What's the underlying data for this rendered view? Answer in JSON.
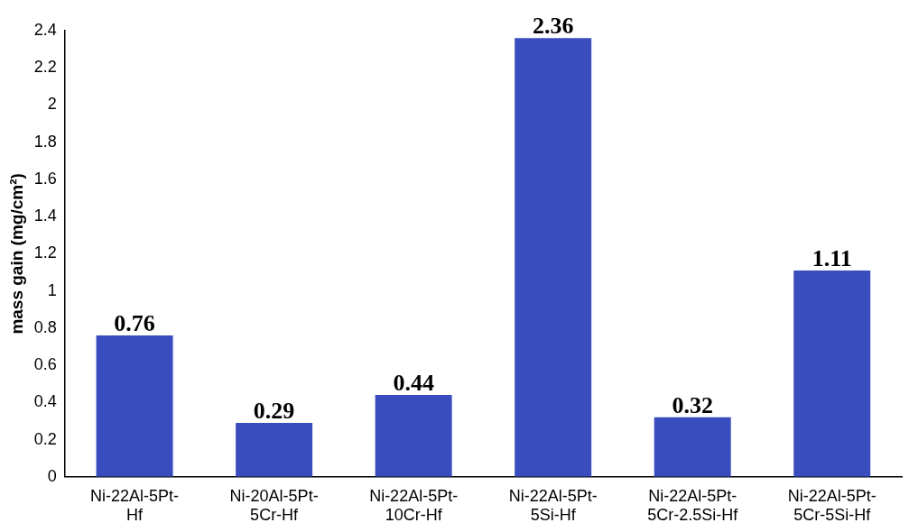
{
  "chart_data": {
    "type": "bar",
    "ylabel": "mass gain (mg/cm²)",
    "categories": [
      "Ni-22Al-5Pt-\nHf",
      "Ni-20Al-5Pt-\n5Cr-Hf",
      "Ni-22Al-5Pt-\n10Cr-Hf",
      "Ni-22Al-5Pt-\n5Si-Hf",
      "Ni-22Al-5Pt-\n5Cr-2.5Si-Hf",
      "Ni-22Al-5Pt-\n5Cr-5Si-Hf"
    ],
    "values": [
      0.76,
      0.29,
      0.44,
      2.36,
      0.32,
      1.11
    ],
    "color": "#3a4dbf",
    "ylim": [
      0,
      2.4
    ],
    "yticks": [
      0,
      0.2,
      0.4,
      0.6,
      0.8,
      1,
      1.2,
      1.4,
      1.6,
      1.8,
      2,
      2.2,
      2.4
    ],
    "grid": false,
    "legend": false,
    "data_labels": true
  }
}
